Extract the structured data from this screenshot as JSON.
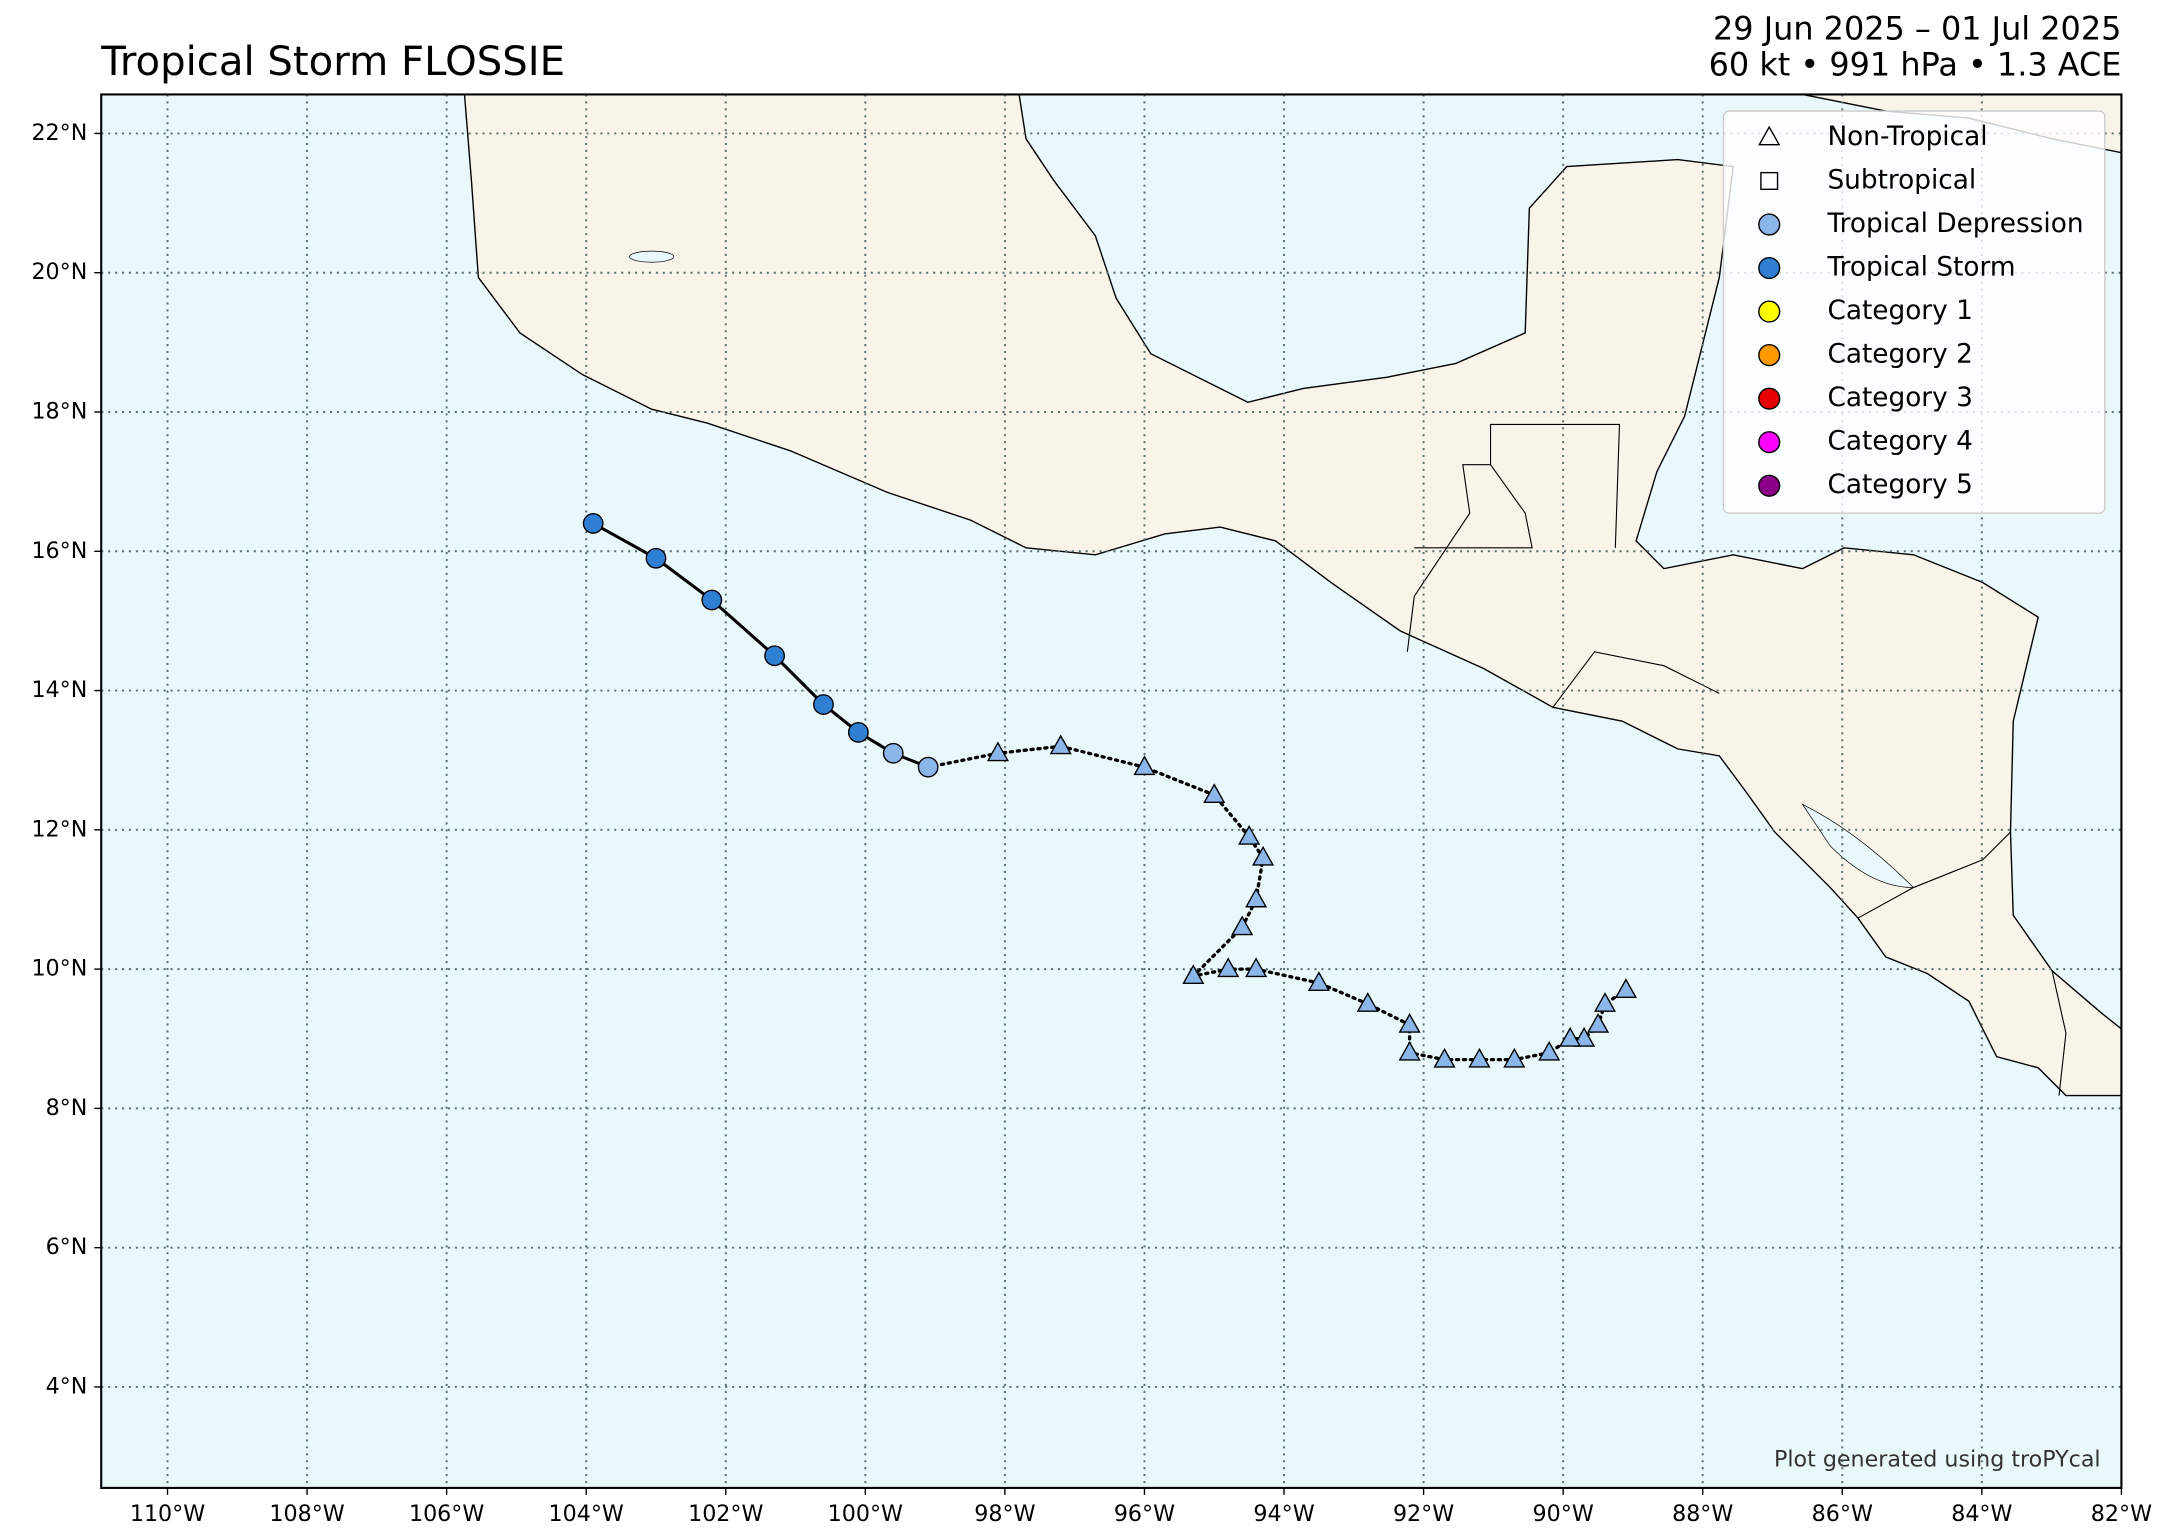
{
  "chart_data": {
    "type": "track",
    "title": "Tropical Storm FLOSSIE",
    "subtitle": [
      "29 Jun 2025 – 01 Jul 2025",
      "60 kt • 991 hPa • 1.3 ACE"
    ],
    "annotation": "Plot generated using troPYcal",
    "xlim": [
      -110.95,
      -82
    ],
    "ylim": [
      2.55,
      22.56
    ],
    "xticks": [
      {
        "value": -110,
        "label": "110°W"
      },
      {
        "value": -108,
        "label": "108°W"
      },
      {
        "value": -106,
        "label": "106°W"
      },
      {
        "value": -104,
        "label": "104°W"
      },
      {
        "value": -102,
        "label": "102°W"
      },
      {
        "value": -100,
        "label": "100°W"
      },
      {
        "value": -98,
        "label": "98°W"
      },
      {
        "value": -96,
        "label": "96°W"
      },
      {
        "value": -94,
        "label": "94°W"
      },
      {
        "value": -92,
        "label": "92°W"
      },
      {
        "value": -90,
        "label": "90°W"
      },
      {
        "value": -88,
        "label": "88°W"
      },
      {
        "value": -86,
        "label": "86°W"
      },
      {
        "value": -84,
        "label": "84°W"
      },
      {
        "value": -82,
        "label": "82°W"
      }
    ],
    "yticks": [
      {
        "value": 4,
        "label": "4°N"
      },
      {
        "value": 6,
        "label": "6°N"
      },
      {
        "value": 8,
        "label": "8°N"
      },
      {
        "value": 10,
        "label": "10°N"
      },
      {
        "value": 12,
        "label": "12°N"
      },
      {
        "value": 14,
        "label": "14°N"
      },
      {
        "value": 16,
        "label": "16°N"
      },
      {
        "value": 18,
        "label": "18°N"
      },
      {
        "value": 20,
        "label": "20°N"
      },
      {
        "value": 22,
        "label": "22°N"
      }
    ],
    "grid": true,
    "legend_position": "upper right",
    "legend": [
      {
        "name": "Non-Tropical",
        "marker": "triangle",
        "color": null
      },
      {
        "name": "Subtropical",
        "marker": "square",
        "color": null
      },
      {
        "name": "Tropical Depression",
        "marker": "circle",
        "color": "#8ab6ea"
      },
      {
        "name": "Tropical Storm",
        "marker": "circle",
        "color": "#2f7fd3"
      },
      {
        "name": "Category 1",
        "marker": "circle",
        "color": "#ffff00"
      },
      {
        "name": "Category 2",
        "marker": "circle",
        "color": "#ff9900"
      },
      {
        "name": "Category 3",
        "marker": "circle",
        "color": "#e60000"
      },
      {
        "name": "Category 4",
        "marker": "circle",
        "color": "#ff00ff"
      },
      {
        "name": "Category 5",
        "marker": "circle",
        "color": "#8b0088"
      }
    ],
    "nontropical_color": "#8ab6ea",
    "x": [
      -89.1,
      -89.4,
      -89.5,
      -89.7,
      -89.9,
      -90.2,
      -90.7,
      -91.2,
      -91.7,
      -92.2,
      -92.2,
      -92.8,
      -93.5,
      -94.4,
      -94.8,
      -95.3,
      -94.6,
      -94.4,
      -94.3,
      -94.5,
      -95.0,
      -96.0,
      -97.2,
      -98.1,
      -99.1,
      -99.6,
      -100.1,
      -100.6,
      -101.3,
      -102.2,
      -103.0,
      -103.9
    ],
    "y": [
      9.7,
      9.5,
      9.2,
      9.0,
      9.0,
      8.8,
      8.7,
      8.7,
      8.7,
      8.8,
      9.2,
      9.5,
      9.8,
      10.0,
      10.0,
      9.9,
      10.6,
      11.0,
      11.6,
      11.9,
      12.5,
      12.9,
      13.2,
      13.1,
      12.9,
      13.1,
      13.4,
      13.8,
      14.5,
      15.3,
      15.9,
      16.4
    ],
    "status": [
      "Non-Tropical",
      "Non-Tropical",
      "Non-Tropical",
      "Non-Tropical",
      "Non-Tropical",
      "Non-Tropical",
      "Non-Tropical",
      "Non-Tropical",
      "Non-Tropical",
      "Non-Tropical",
      "Non-Tropical",
      "Non-Tropical",
      "Non-Tropical",
      "Non-Tropical",
      "Non-Tropical",
      "Non-Tropical",
      "Non-Tropical",
      "Non-Tropical",
      "Non-Tropical",
      "Non-Tropical",
      "Non-Tropical",
      "Non-Tropical",
      "Non-Tropical",
      "Non-Tropical",
      "Tropical Depression",
      "Tropical Depression",
      "Tropical Storm",
      "Tropical Storm",
      "Tropical Storm",
      "Tropical Storm",
      "Tropical Storm",
      "Tropical Storm"
    ]
  }
}
